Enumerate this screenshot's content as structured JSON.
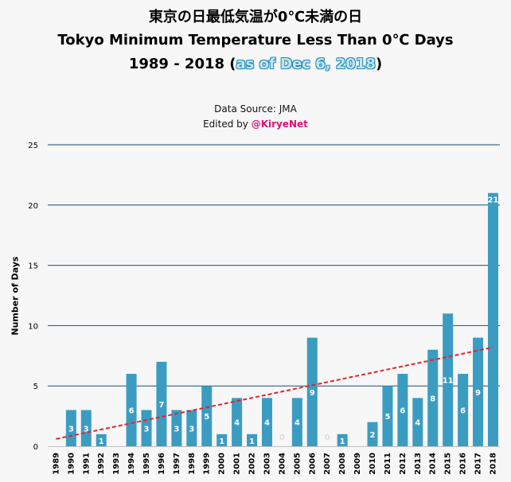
{
  "title": {
    "line1": "東京の日最低気温が0℃未満の日",
    "line2": "Tokyo Minimum Temperature Less Than 0℃ Days",
    "line3_range": "1989 - 2018 (",
    "line3_asof": "as of Dec 6, 2018",
    "line3_close": ")"
  },
  "source": {
    "data_source": "Data Source: JMA",
    "edited_prefix": "Edited by ",
    "edited_handle": "@KiryeNet"
  },
  "colors": {
    "bar": "#3b9cc2",
    "grid": "#1f4e6e",
    "trend": "#e3242b",
    "label_text": "#ffffff",
    "zero_label_text": "#dddddd"
  },
  "chart_data": {
    "type": "bar",
    "title": "Tokyo Minimum Temperature Less Than 0℃ Days",
    "xlabel": "",
    "ylabel": "Number of Days",
    "ylim": [
      0,
      25
    ],
    "yticks": [
      0,
      5,
      10,
      15,
      20,
      25
    ],
    "grid": true,
    "categories": [
      "1989",
      "1990",
      "1991",
      "1992",
      "1993",
      "1994",
      "1995",
      "1996",
      "1997",
      "1998",
      "1999",
      "2000",
      "2001",
      "2002",
      "2003",
      "2004",
      "2005",
      "2006",
      "2007",
      "2008",
      "2009",
      "2010",
      "2011",
      "2012",
      "2013",
      "2014",
      "2015",
      "2016",
      "2017",
      "2018"
    ],
    "values": [
      0,
      3,
      3,
      1,
      0,
      6,
      3,
      7,
      3,
      3,
      5,
      1,
      4,
      1,
      4,
      0,
      4,
      9,
      0,
      1,
      0,
      2,
      5,
      6,
      4,
      8,
      11,
      6,
      9,
      21
    ],
    "data_labels": [
      "",
      "3",
      "3",
      "1",
      "",
      "6",
      "3",
      "7",
      "3",
      "3",
      "5",
      "1",
      "4",
      "1",
      "4",
      "0",
      "4",
      "9",
      "0",
      "1",
      "",
      "2",
      "5",
      "6",
      "4",
      "8",
      "11",
      "6",
      "9",
      "21"
    ],
    "trendline": {
      "type": "linear",
      "style": "dashed",
      "start": [
        1989,
        0.6
      ],
      "end": [
        2018,
        8.2
      ]
    }
  }
}
